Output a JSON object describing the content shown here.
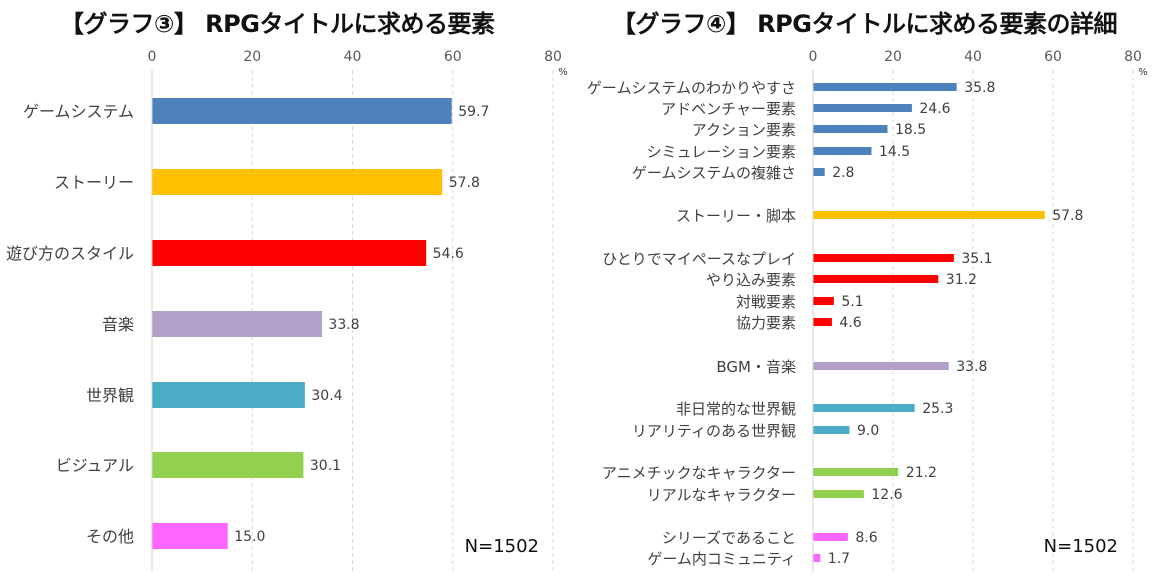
{
  "chart_data": [
    {
      "type": "bar",
      "orientation": "horizontal",
      "title": "【グラフ③】 RPGタイトルに求める要素",
      "xlabel": "",
      "unit": "%",
      "xlim": [
        0,
        80
      ],
      "ticks": [
        0,
        20,
        40,
        60,
        80
      ],
      "grid": true,
      "sample_note": "N=1502",
      "categories": [
        "ゲームシステム",
        "ストーリー",
        "遊び方のスタイル",
        "音楽",
        "世界観",
        "ビジュアル",
        "その他"
      ],
      "values": [
        59.7,
        57.8,
        54.6,
        33.8,
        30.4,
        30.1,
        15.0
      ],
      "value_labels": [
        "59.7",
        "57.8",
        "54.6",
        "33.8",
        "30.4",
        "30.1",
        "15.0"
      ],
      "colors": [
        "#4f81bd",
        "#ffc000",
        "#ff0000",
        "#b1a0c7",
        "#4bacc6",
        "#92d050",
        "#ff66ff"
      ]
    },
    {
      "type": "bar",
      "orientation": "horizontal",
      "title": "【グラフ④】 RPGタイトルに求める要素の詳細",
      "xlabel": "",
      "unit": "%",
      "xlim": [
        0,
        80
      ],
      "ticks": [
        0,
        20,
        40,
        60,
        80
      ],
      "grid": true,
      "sample_note": "N=1502",
      "groups": [
        {
          "color": "#4f81bd",
          "items": [
            {
              "label": "ゲームシステムのわかりやすさ",
              "value": 35.8,
              "value_label": "35.8"
            },
            {
              "label": "アドベンチャー要素",
              "value": 24.6,
              "value_label": "24.6"
            },
            {
              "label": "アクション要素",
              "value": 18.5,
              "value_label": "18.5"
            },
            {
              "label": "シミュレーション要素",
              "value": 14.5,
              "value_label": "14.5"
            },
            {
              "label": "ゲームシステムの複雑さ",
              "value": 2.8,
              "value_label": "2.8"
            }
          ]
        },
        {
          "color": "#ffc000",
          "items": [
            {
              "label": "ストーリー・脚本",
              "value": 57.8,
              "value_label": "57.8"
            }
          ]
        },
        {
          "color": "#ff0000",
          "items": [
            {
              "label": "ひとりでマイペースなプレイ",
              "value": 35.1,
              "value_label": "35.1"
            },
            {
              "label": "やり込み要素",
              "value": 31.2,
              "value_label": "31.2"
            },
            {
              "label": "対戦要素",
              "value": 5.1,
              "value_label": "5.1"
            },
            {
              "label": "協力要素",
              "value": 4.6,
              "value_label": "4.6"
            }
          ]
        },
        {
          "color": "#b1a0c7",
          "items": [
            {
              "label": "BGM・音楽",
              "value": 33.8,
              "value_label": "33.8"
            }
          ]
        },
        {
          "color": "#4bacc6",
          "items": [
            {
              "label": "非日常的な世界観",
              "value": 25.3,
              "value_label": "25.3"
            },
            {
              "label": "リアリティのある世界観",
              "value": 9.0,
              "value_label": "9.0"
            }
          ]
        },
        {
          "color": "#92d050",
          "items": [
            {
              "label": "アニメチックなキャラクター",
              "value": 21.2,
              "value_label": "21.2"
            },
            {
              "label": "リアルなキャラクター",
              "value": 12.6,
              "value_label": "12.6"
            }
          ]
        },
        {
          "color": "#ff66ff",
          "items": [
            {
              "label": "シリーズであること",
              "value": 8.6,
              "value_label": "8.6"
            },
            {
              "label": "ゲーム内コミュニティ",
              "value": 1.7,
              "value_label": "1.7"
            }
          ]
        }
      ]
    }
  ],
  "unit_symbol": "%"
}
